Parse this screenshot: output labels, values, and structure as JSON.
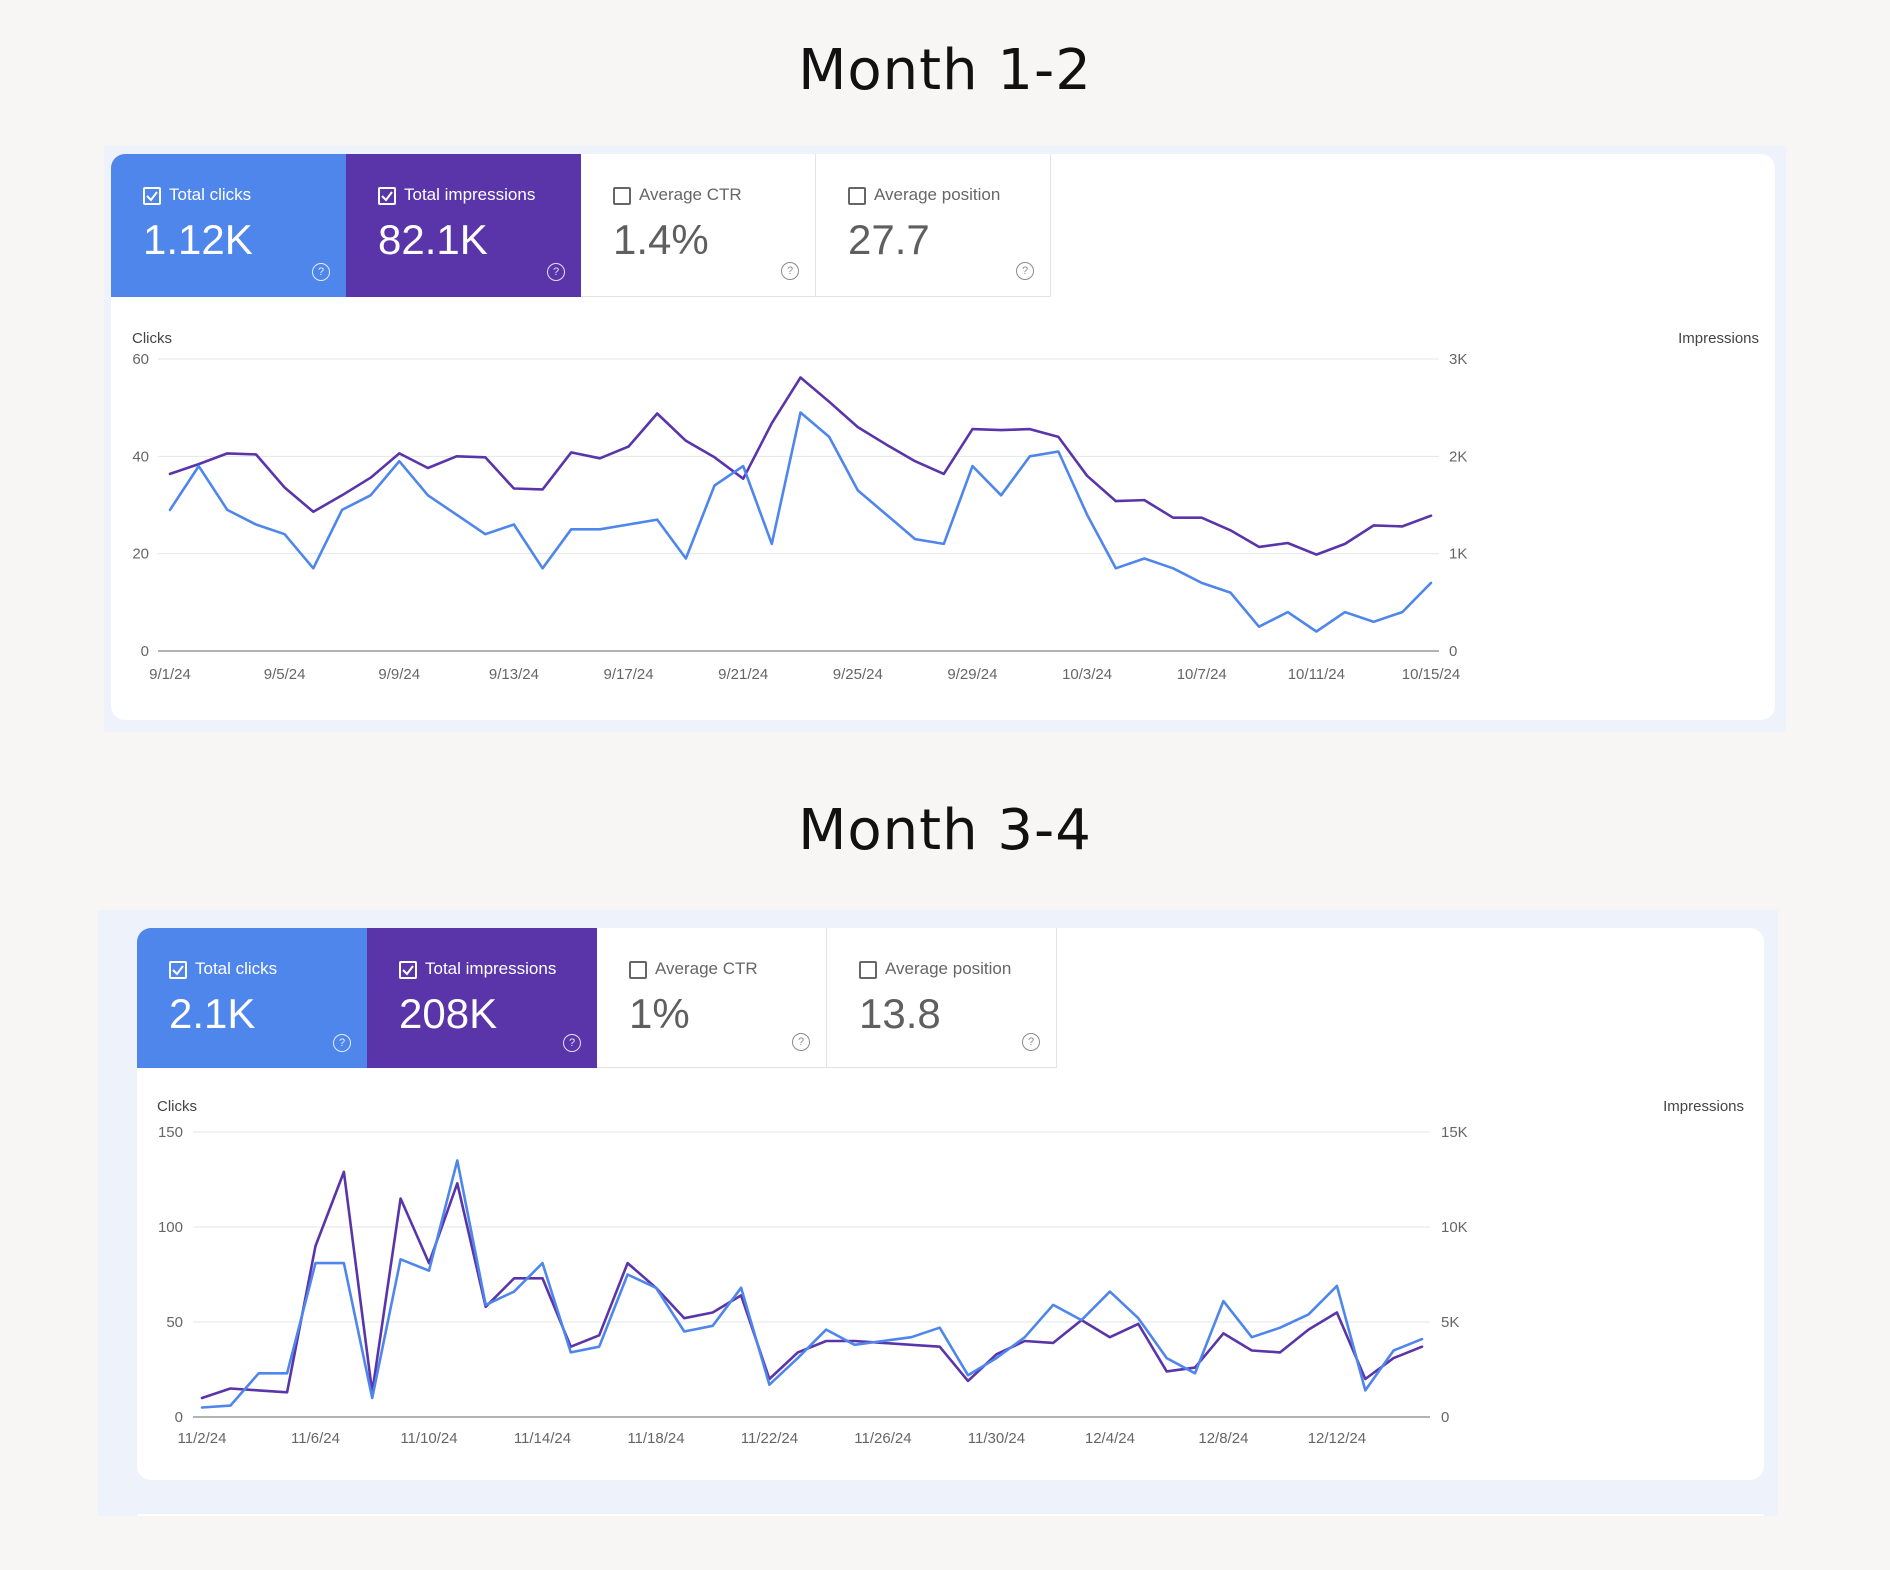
{
  "sections": [
    {
      "heading": "Month 1-2",
      "metrics": [
        {
          "label": "Total clicks",
          "value": "1.12K",
          "checked": true
        },
        {
          "label": "Total impressions",
          "value": "82.1K",
          "checked": true
        },
        {
          "label": "Average CTR",
          "value": "1.4%",
          "checked": false
        },
        {
          "label": "Average position",
          "value": "27.7",
          "checked": false
        }
      ],
      "left_axis_title": "Clicks",
      "right_axis_title": "Impressions"
    },
    {
      "heading": "Month 3-4",
      "metrics": [
        {
          "label": "Total clicks",
          "value": "2.1K",
          "checked": true
        },
        {
          "label": "Total impressions",
          "value": "208K",
          "checked": true
        },
        {
          "label": "Average CTR",
          "value": "1%",
          "checked": false
        },
        {
          "label": "Average position",
          "value": "13.8",
          "checked": false
        }
      ],
      "left_axis_title": "Clicks",
      "right_axis_title": "Impressions"
    }
  ],
  "colors": {
    "clicks": "#4f86ec",
    "impressions": "#5a35aa",
    "grid": "#e6e6e6",
    "axis": "#9a9a9a"
  },
  "chart_data": [
    {
      "type": "line",
      "x_tick_labels": [
        "9/1/24",
        "9/5/24",
        "9/9/24",
        "9/13/24",
        "9/17/24",
        "9/21/24",
        "9/25/24",
        "9/29/24",
        "10/3/24",
        "10/7/24",
        "10/11/24",
        "10/15/24"
      ],
      "left_axis": {
        "ticks": [
          "0",
          "20",
          "40",
          "60"
        ],
        "ylim": [
          0,
          60
        ]
      },
      "right_axis": {
        "ticks": [
          "0",
          "1K",
          "2K",
          "3K"
        ],
        "ylim": [
          0,
          3000
        ]
      },
      "grid": true,
      "legend": "none",
      "series": [
        {
          "axis": "left",
          "color": "#4f86ec",
          "values": [
            29,
            38,
            29,
            26,
            24,
            17,
            29,
            32,
            39,
            32,
            28,
            24,
            26,
            17,
            25,
            25,
            26,
            27,
            19,
            34,
            38,
            22,
            49,
            44,
            33,
            28,
            23,
            22,
            38,
            32,
            40,
            41,
            28,
            17,
            19,
            17,
            14,
            12,
            5,
            8,
            4,
            8,
            6,
            8,
            14
          ]
        },
        {
          "axis": "right",
          "color": "#5a35aa",
          "values": [
            1820,
            1920,
            2030,
            2020,
            1680,
            1430,
            1600,
            1780,
            2030,
            1880,
            2000,
            1990,
            1670,
            1660,
            2040,
            1980,
            2100,
            2440,
            2160,
            1990,
            1770,
            2340,
            2810,
            2560,
            2300,
            2120,
            1950,
            1820,
            2280,
            2270,
            2280,
            2200,
            1800,
            1540,
            1550,
            1370,
            1370,
            1240,
            1070,
            1110,
            990,
            1100,
            1290,
            1280,
            1390
          ]
        }
      ]
    },
    {
      "type": "line",
      "x_tick_labels": [
        "11/2/24",
        "11/6/24",
        "11/10/24",
        "11/14/24",
        "11/18/24",
        "11/22/24",
        "11/26/24",
        "11/30/24",
        "12/4/24",
        "12/8/24",
        "12/12/24"
      ],
      "left_axis": {
        "ticks": [
          "0",
          "50",
          "100",
          "150"
        ],
        "ylim": [
          0,
          150
        ]
      },
      "right_axis": {
        "ticks": [
          "0",
          "5K",
          "10K",
          "15K"
        ],
        "ylim": [
          0,
          15000
        ]
      },
      "grid": true,
      "legend": "none",
      "series": [
        {
          "axis": "left",
          "color": "#4f86ec",
          "values": [
            5,
            6,
            23,
            23,
            81,
            81,
            10,
            83,
            77,
            135,
            59,
            66,
            81,
            34,
            37,
            75,
            68,
            45,
            48,
            68,
            17,
            31,
            46,
            38,
            40,
            42,
            47,
            22,
            31,
            42,
            59,
            51,
            66,
            52,
            31,
            23,
            61,
            42,
            47,
            54,
            69,
            14,
            35,
            41
          ]
        },
        {
          "axis": "right",
          "color": "#5a35aa",
          "values": [
            1000,
            1500,
            1400,
            1300,
            9000,
            12900,
            1300,
            11500,
            8100,
            12300,
            5800,
            7300,
            7300,
            3700,
            4300,
            8100,
            6800,
            5200,
            5500,
            6400,
            2000,
            3400,
            4000,
            4000,
            3900,
            3800,
            3700,
            1900,
            3300,
            4000,
            3900,
            5100,
            4200,
            4900,
            2400,
            2600,
            4400,
            3500,
            3400,
            4600,
            5500,
            2000,
            3100,
            3700
          ]
        }
      ]
    }
  ]
}
